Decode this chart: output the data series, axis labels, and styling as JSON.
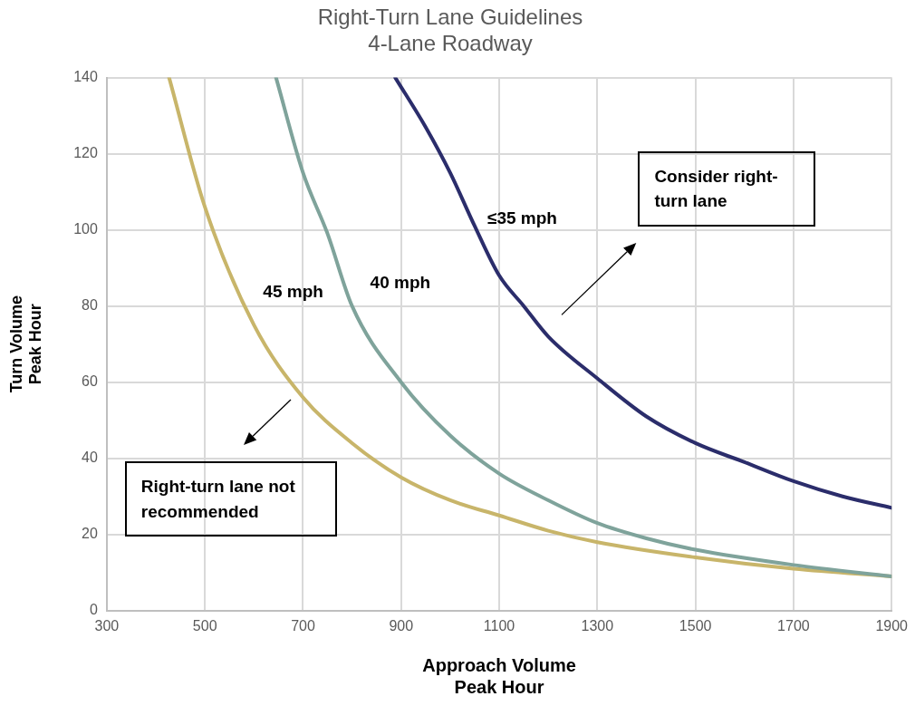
{
  "chart_data": {
    "type": "line",
    "title": "Right-Turn Lane Guidelines\n4-Lane Roadway",
    "xlabel": "Approach Volume\nPeak Hour",
    "ylabel": "Turn Volume\nPeak Hour",
    "xlim": [
      300,
      1900
    ],
    "xticks": [
      300,
      500,
      700,
      900,
      1100,
      1300,
      1500,
      1700,
      1900
    ],
    "ylim": [
      0,
      140
    ],
    "yticks": [
      0,
      20,
      40,
      60,
      80,
      100,
      120,
      140
    ],
    "grid": true,
    "legend": false,
    "marker": "none",
    "line_style": "solid",
    "annotations": [
      "Consider right-turn lane",
      "Right-turn lane not recommended"
    ],
    "series": [
      {
        "name": "≤35 mph",
        "color": "#2b2d6b",
        "x": [
          888,
          950,
          1000,
          1050,
          1100,
          1150,
          1200,
          1300,
          1400,
          1500,
          1600,
          1700,
          1800,
          1900
        ],
        "values": [
          140,
          127,
          115,
          101,
          88,
          80,
          72,
          61,
          51,
          44,
          39,
          34,
          30,
          27
        ]
      },
      {
        "name": "40 mph",
        "color": "#7fa39b",
        "x": [
          645,
          700,
          750,
          800,
          900,
          1000,
          1100,
          1200,
          1300,
          1400,
          1500,
          1700,
          1900
        ],
        "values": [
          140,
          115,
          99,
          80,
          60,
          46,
          36,
          29,
          23,
          19,
          16,
          12,
          9
        ]
      },
      {
        "name": "45 mph",
        "color": "#c8b56a",
        "x": [
          427,
          500,
          600,
          700,
          800,
          900,
          1000,
          1100,
          1200,
          1300,
          1500,
          1700,
          1900
        ],
        "values": [
          140,
          106,
          75,
          56,
          44,
          35,
          29,
          25,
          21,
          18,
          14,
          11,
          9
        ]
      }
    ]
  }
}
